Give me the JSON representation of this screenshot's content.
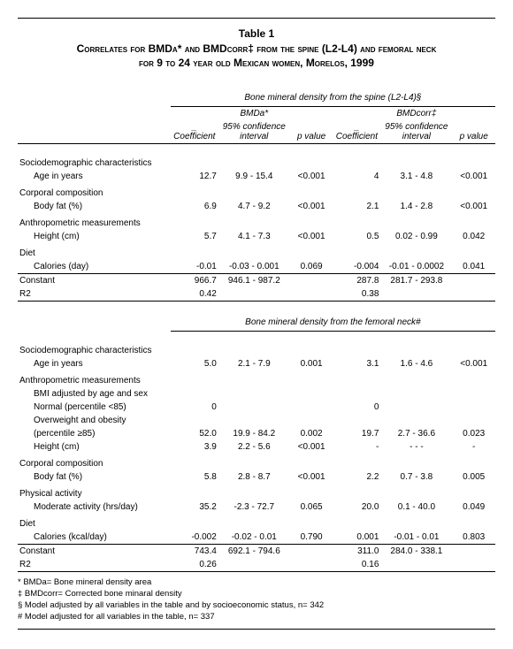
{
  "table_label": "Table 1",
  "title_line1": "Correlates for BMDa* and BMDcorr‡ from the spine (L2-L4) and femoral neck",
  "title_line2": "for 9 to 24 year old Mexican women, Morelos, 1999",
  "headers": {
    "spine_section": "Bone mineral density  from the spine (L2-L4)§",
    "femoral_section": "Bone mineral density  from the femoral neck#",
    "bmda": "BMDa*",
    "bmdcorr": "BMDcorr‡",
    "coef": "_ Coefficient",
    "ci": "95% confidence interval",
    "pval": "p value"
  },
  "spine": {
    "groups": [
      {
        "label": "Sociodemographic characteristics",
        "rows": [
          {
            "name": "Age in years",
            "a_coef": "12.7",
            "a_ci": "9.9  -  15.4",
            "a_p": "<0.001",
            "b_coef": "4",
            "b_ci": "3.1  -   4.8",
            "b_p": "<0.001"
          }
        ]
      },
      {
        "label": "Corporal composition",
        "rows": [
          {
            "name": "Body fat (%)",
            "a_coef": "6.9",
            "a_ci": "4.7  -   9.2",
            "a_p": "<0.001",
            "b_coef": "2.1",
            "b_ci": "1.4  -   2.8",
            "b_p": "<0.001"
          }
        ]
      },
      {
        "label": "Anthropometric measurements",
        "rows": [
          {
            "name": "Height (cm)",
            "a_coef": "5.7",
            "a_ci": "4.1  -   7.3",
            "a_p": "<0.001",
            "b_coef": "0.5",
            "b_ci": "0.02 -   0.99",
            "b_p": "0.042"
          }
        ]
      },
      {
        "label": "Diet",
        "rows": [
          {
            "name": "Calories (day)",
            "a_coef": "-0.01",
            "a_ci": "-0.03 -   0.001",
            "a_p": "0.069",
            "b_coef": "-0.004",
            "b_ci": "-0.01 -   0.0002",
            "b_p": "0.041"
          }
        ]
      }
    ],
    "constant": {
      "name": "Constant",
      "a_coef": "966.7",
      "a_ci": "946.1  - 987.2",
      "a_p": "",
      "b_coef": "287.8",
      "b_ci": "281.7  - 293.8",
      "b_p": ""
    },
    "r2": {
      "name": "R2",
      "a_coef": "0.42",
      "b_coef": "0.38"
    }
  },
  "femoral": {
    "groups": [
      {
        "label": "Sociodemographic characteristics",
        "rows": [
          {
            "name": "Age in years",
            "a_coef": "5.0",
            "a_ci": "2.1  -   7.9",
            "a_p": "0.001",
            "b_coef": "3.1",
            "b_ci": "1.6  -   4.6",
            "b_p": "<0.001"
          }
        ]
      },
      {
        "label": "Anthropometric measurements",
        "rows": [
          {
            "name": "BMI adjusted by age and sex",
            "a_coef": "",
            "a_ci": "",
            "a_p": "",
            "b_coef": "",
            "b_ci": "",
            "b_p": ""
          },
          {
            "name": "Normal (percentile <85)",
            "a_coef": "0",
            "a_ci": "",
            "a_p": "",
            "b_coef": "0",
            "b_ci": "",
            "b_p": ""
          },
          {
            "name": "Overweight and obesity",
            "a_coef": "",
            "a_ci": "",
            "a_p": "",
            "b_coef": "",
            "b_ci": "",
            "b_p": ""
          },
          {
            "name": "(percentile ≥85)",
            "a_coef": "52.0",
            "a_ci": "19.9  -  84.2",
            "a_p": "0.002",
            "b_coef": "19.7",
            "b_ci": "2.7  -  36.6",
            "b_p": "0.023"
          },
          {
            "name": "Height (cm)",
            "a_coef": "3.9",
            "a_ci": "2.2  -   5.6",
            "a_p": "<0.001",
            "b_coef": "-",
            "b_ci": "-       -       -",
            "b_p": "-"
          }
        ]
      },
      {
        "label": "Corporal composition",
        "rows": [
          {
            "name": "Body fat (%)",
            "a_coef": "5.8",
            "a_ci": "2.8  -   8.7",
            "a_p": "<0.001",
            "b_coef": "2.2",
            "b_ci": "0.7  -   3.8",
            "b_p": "0.005"
          }
        ]
      },
      {
        "label": "Physical activity",
        "rows": [
          {
            "name": "Moderate activity (hrs/day)",
            "a_coef": "35.2",
            "a_ci": "-2.3  -  72.7",
            "a_p": "0.065",
            "b_coef": "20.0",
            "b_ci": "0.1  -  40.0",
            "b_p": "0.049"
          }
        ]
      },
      {
        "label": "Diet",
        "rows": [
          {
            "name": "Calories (kcal/day)",
            "a_coef": "-0.002",
            "a_ci": "-0.02  -   0.01",
            "a_p": "0.790",
            "b_coef": "0.001",
            "b_ci": "-0.01 -   0.01",
            "b_p": "0.803"
          }
        ]
      }
    ],
    "constant": {
      "name": "Constant",
      "a_coef": "743.4",
      "a_ci": "692.1  - 794.6",
      "a_p": "",
      "b_coef": "311.0",
      "b_ci": "284.0  - 338.1",
      "b_p": ""
    },
    "r2": {
      "name": "R2",
      "a_coef": "0.26",
      "b_coef": "0.16"
    }
  },
  "footnotes": [
    "* BMDa= Bone mineral density area",
    "‡ BMDcorr= Corrected bone minaral density",
    "§ Model adjusted by all variables in the table and by socioeconomic status, n= 342",
    "# Model adjusted for all variables in the table, n= 337"
  ]
}
